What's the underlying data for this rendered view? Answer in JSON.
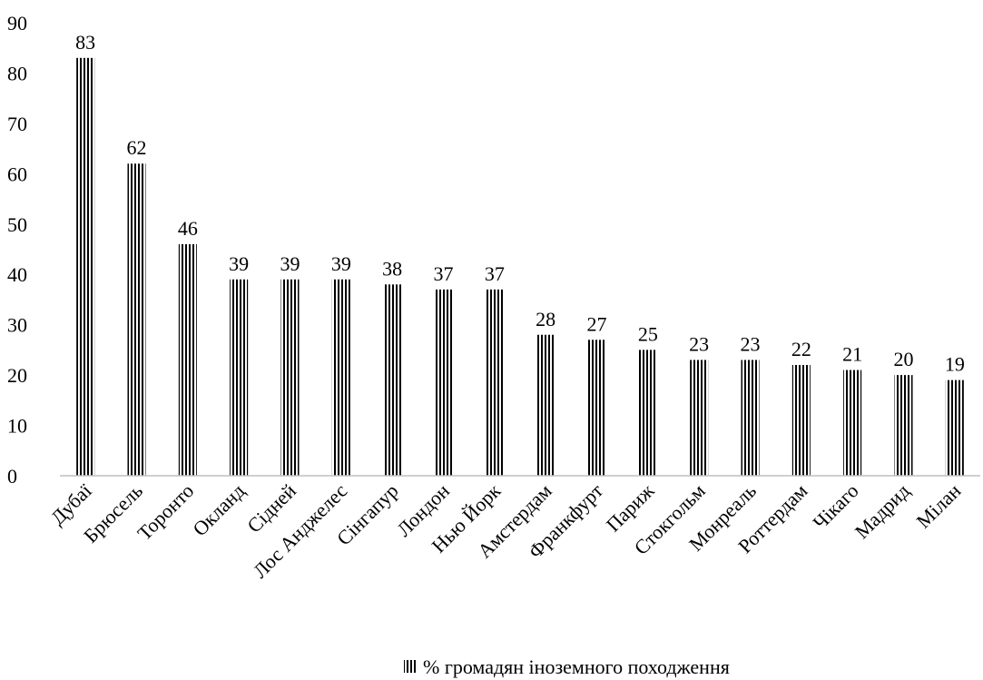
{
  "chart_data": {
    "type": "bar",
    "categories": [
      "Дубаї",
      "Брюсель",
      "Торонто",
      "Окланд",
      "Сідней",
      "Лос Анджелес",
      "Сінгапур",
      "Лондон",
      "Нью Йорк",
      "Амстердам",
      "Франкфурт",
      "Париж",
      "Стокгольм",
      "Монреаль",
      "Роттердам",
      "Чікаго",
      "Мадрид",
      "Мілан"
    ],
    "series": [
      {
        "name": "% громадян іноземного походження",
        "values": [
          83,
          62,
          46,
          39,
          39,
          39,
          38,
          37,
          37,
          28,
          27,
          25,
          23,
          23,
          22,
          21,
          20,
          19
        ]
      }
    ],
    "ylim": [
      0,
      90
    ],
    "yticks": [
      0,
      10,
      20,
      30,
      40,
      50,
      60,
      70,
      80,
      90
    ],
    "grid": false,
    "legend_position": "bottom",
    "bar_pattern": "vertical-stripes",
    "bar_color": "#000000"
  }
}
